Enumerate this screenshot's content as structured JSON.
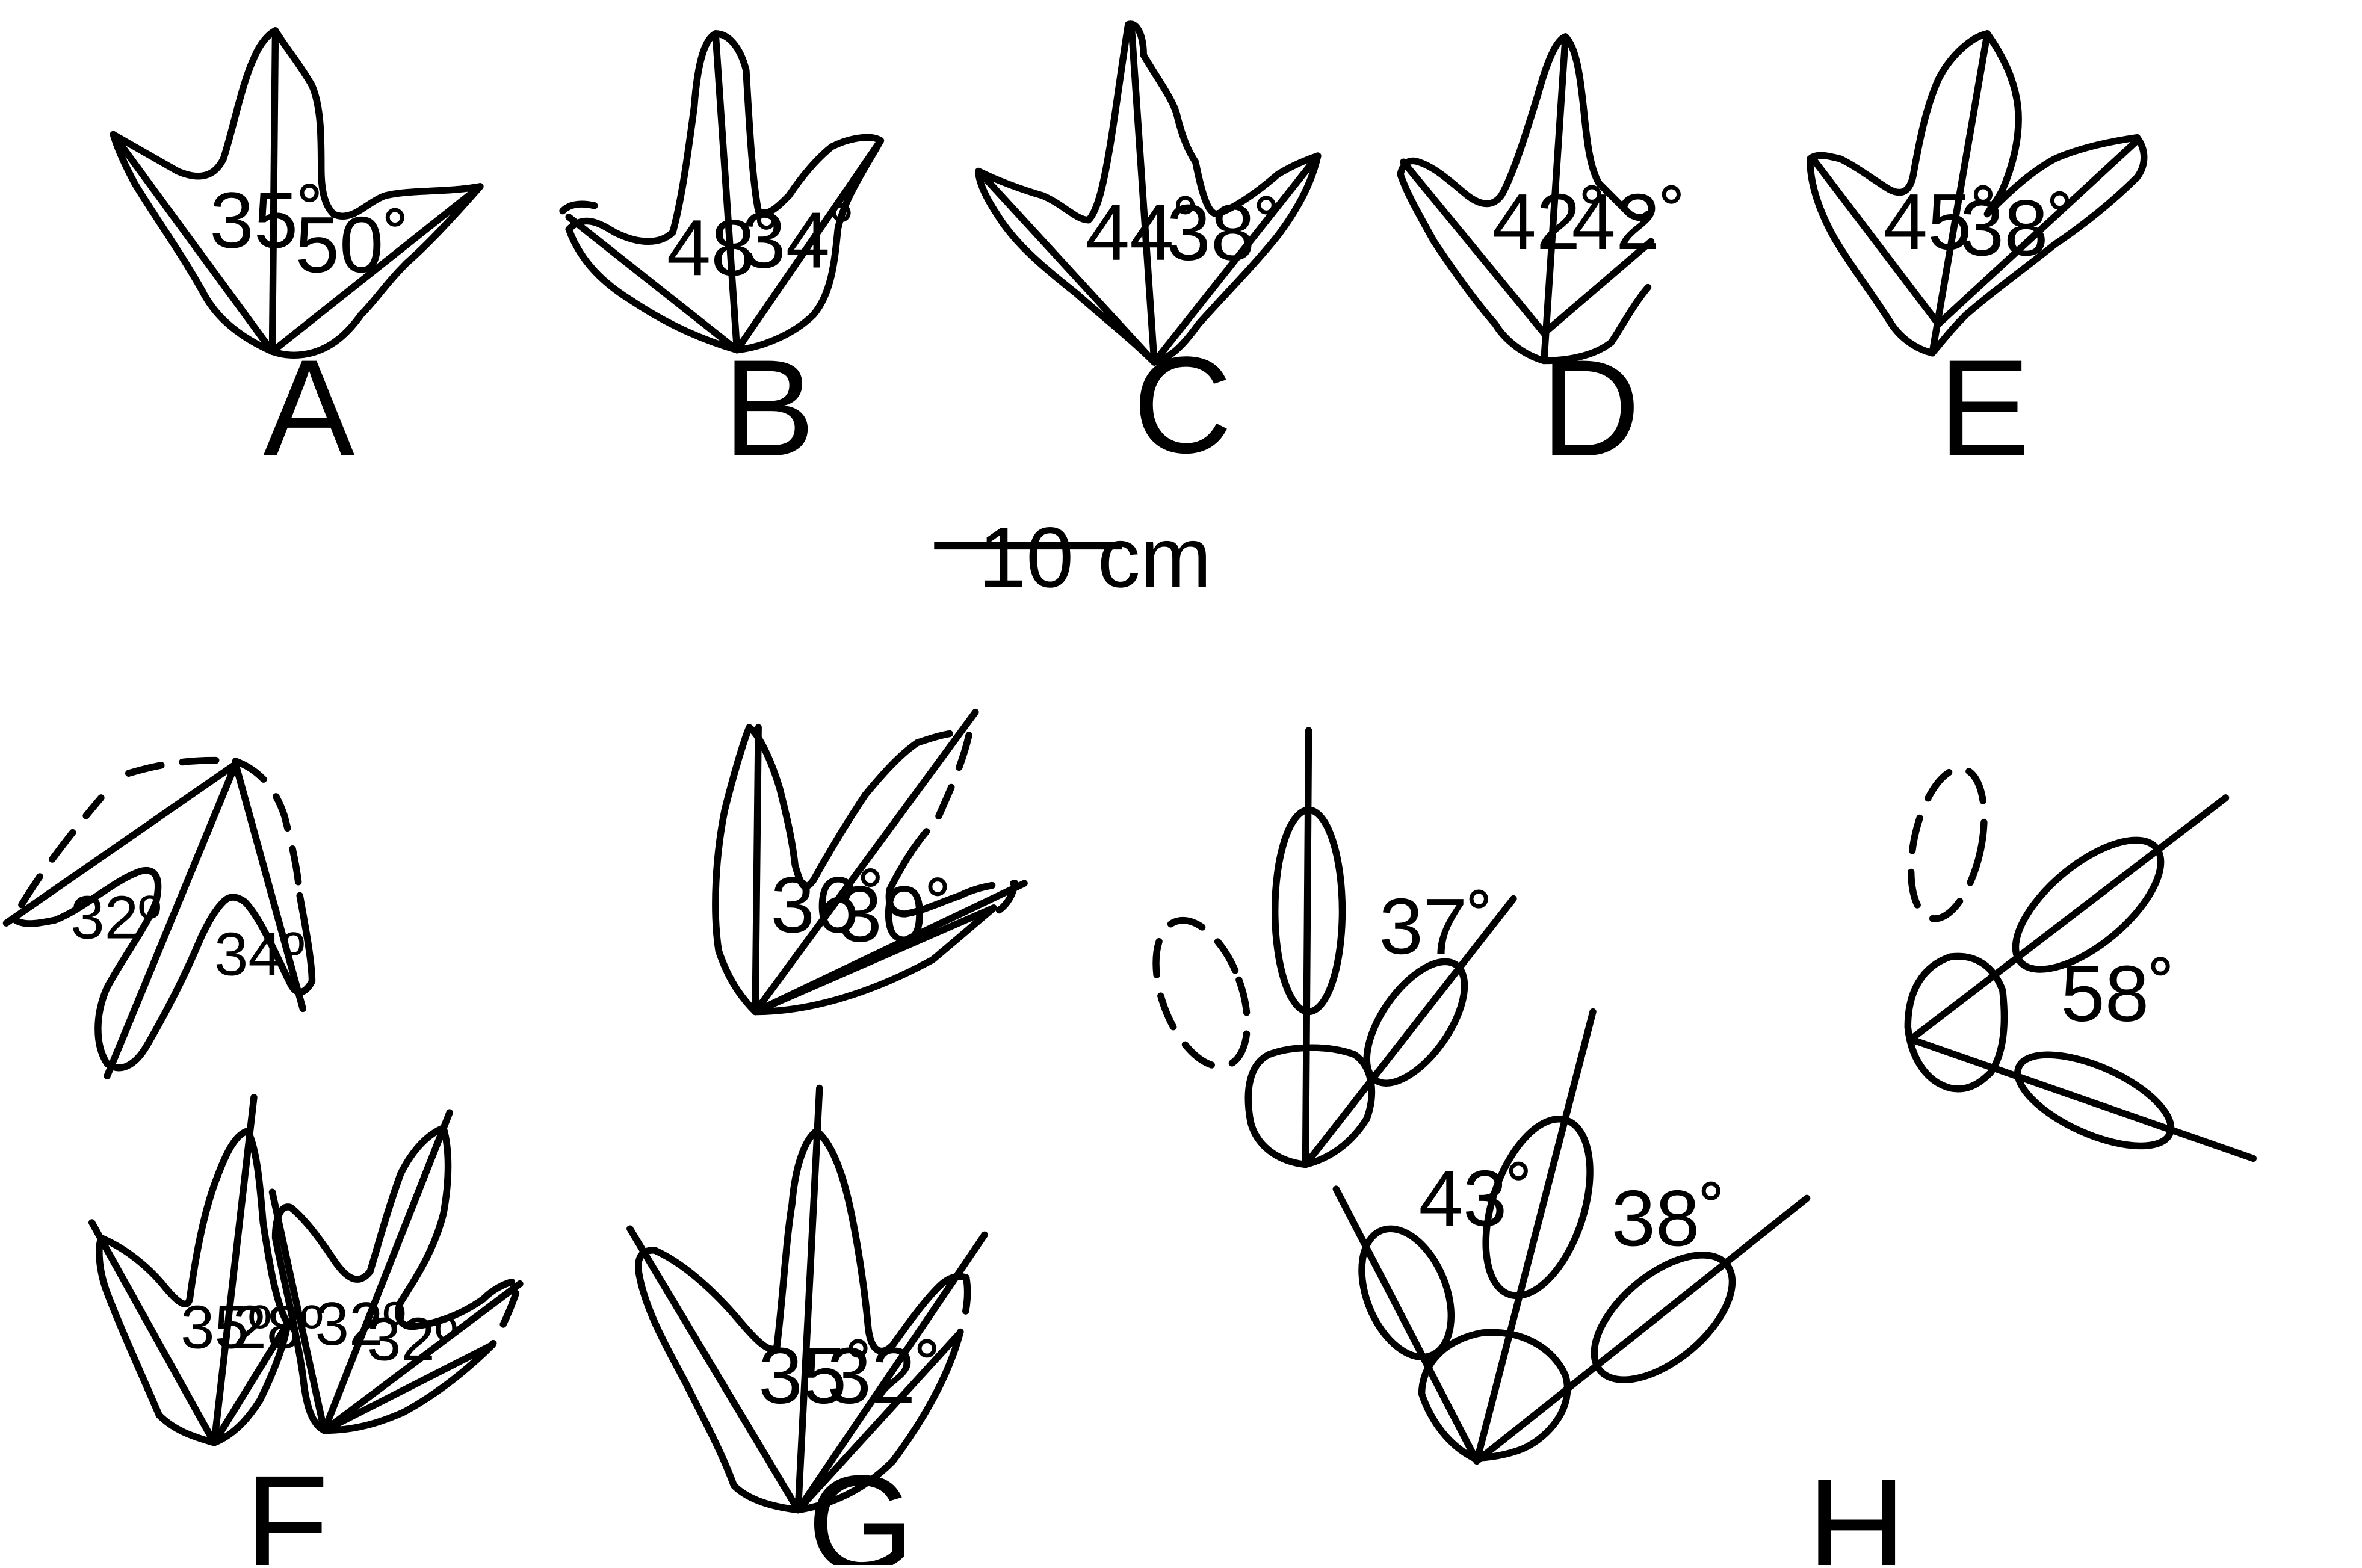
{
  "figure": {
    "panels": [
      {
        "label": "A",
        "angles": [
          "35˚",
          "50˚"
        ]
      },
      {
        "label": "B",
        "angles": [
          "48˚",
          "34˚"
        ]
      },
      {
        "label": "C",
        "angles": [
          "44˚",
          "38˚"
        ]
      },
      {
        "label": "D",
        "angles": [
          "42˚",
          "42˚"
        ]
      },
      {
        "label": "E",
        "angles": [
          "45˚",
          "38˚"
        ]
      },
      {
        "label": "F",
        "angles": [
          "32º",
          "34º",
          "35º",
          "28º",
          "32º",
          "32º"
        ]
      },
      {
        "label": "G",
        "angles": [
          "36˚",
          "30˚",
          "35˚",
          "32˚"
        ]
      },
      {
        "label": "H",
        "angles": [
          "37˚",
          "43˚",
          "38˚",
          "58˚"
        ]
      }
    ],
    "scale_bar": {
      "label": "10 cm"
    }
  },
  "colors": {
    "ink": "#000000",
    "background": "#ffffff"
  }
}
